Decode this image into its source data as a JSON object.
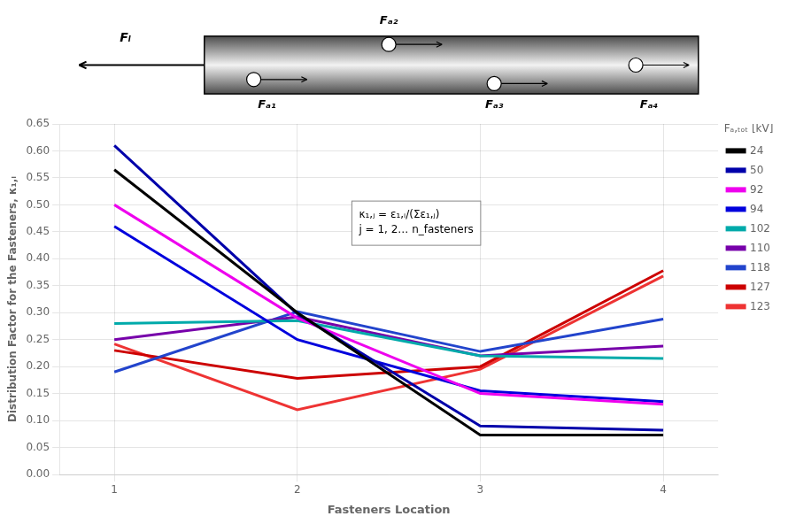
{
  "chart_data": {
    "type": "line",
    "x": [
      1,
      2,
      3,
      4
    ],
    "series": [
      {
        "name": "24",
        "color": "#000000",
        "values": [
          0.565,
          0.3,
          0.073,
          0.073
        ]
      },
      {
        "name": "50",
        "color": "#0000aa",
        "values": [
          0.61,
          0.298,
          0.09,
          0.082
        ]
      },
      {
        "name": "92",
        "color": "#ee00ee",
        "values": [
          0.5,
          0.29,
          0.15,
          0.13
        ]
      },
      {
        "name": "94",
        "color": "#0000dd",
        "values": [
          0.46,
          0.25,
          0.155,
          0.135
        ]
      },
      {
        "name": "102",
        "color": "#00aaaa",
        "values": [
          0.28,
          0.285,
          0.22,
          0.215
        ]
      },
      {
        "name": "110",
        "color": "#7700aa",
        "values": [
          0.25,
          0.292,
          0.22,
          0.238
        ]
      },
      {
        "name": "118",
        "color": "#2244cc",
        "values": [
          0.19,
          0.302,
          0.228,
          0.288
        ]
      },
      {
        "name": "127",
        "color": "#cc0000",
        "values": [
          0.23,
          0.178,
          0.2,
          0.378
        ]
      },
      {
        "name": "123",
        "color": "#ee3333",
        "values": [
          0.242,
          0.12,
          0.195,
          0.368
        ]
      }
    ],
    "xlabel": "Fasteners Location",
    "ylabel": "Distribution Factor for the Fasteners, κ₁,ᵢ",
    "legend_title": "Fₐ,ₜₒₜ [kV]",
    "xlim": [
      0.7,
      4.3
    ],
    "ylim": [
      0.0,
      0.65
    ],
    "xticks": [
      1,
      2,
      3,
      4
    ],
    "yticks": [
      {
        "value": 0.0,
        "label": "0.00"
      },
      0.05,
      {
        "value": 0.1,
        "label": "0.10"
      },
      0.15,
      {
        "value": 0.2,
        "label": "0.20"
      },
      0.25,
      {
        "value": 0.3,
        "label": "0.30"
      },
      0.35,
      {
        "value": 0.4,
        "label": "0.40"
      },
      0.45,
      {
        "value": 0.5,
        "label": "0.50"
      },
      0.55,
      {
        "value": 0.6,
        "label": "0.60"
      },
      0.65
    ],
    "grid": true,
    "legend": "right",
    "marker": "none",
    "line_style": "solid",
    "annotations": {
      "formula": [
        "κ₁,ⱼ = ε₁,ᵢ/(Σε₁,ⱼ)",
        "j = 1, 2… n_fasteners"
      ],
      "diagram": {
        "load": "Fₗ",
        "fasteners": [
          "Fₐ₁",
          "Fₐ₂",
          "Fₐ₃",
          "Fₐ₄"
        ]
      }
    }
  }
}
